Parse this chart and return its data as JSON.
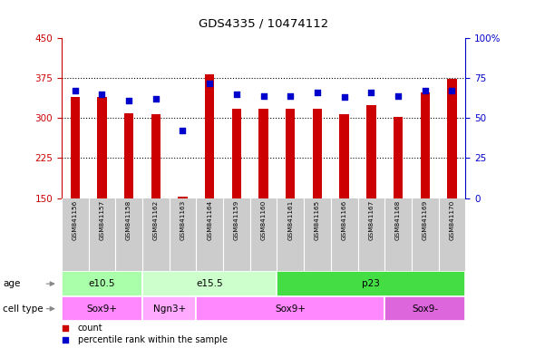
{
  "title": "GDS4335 / 10474112",
  "samples": [
    "GSM841156",
    "GSM841157",
    "GSM841158",
    "GSM841162",
    "GSM841163",
    "GSM841164",
    "GSM841159",
    "GSM841160",
    "GSM841161",
    "GSM841165",
    "GSM841166",
    "GSM841167",
    "GSM841168",
    "GSM841169",
    "GSM841170"
  ],
  "counts": [
    340,
    340,
    310,
    308,
    153,
    382,
    318,
    318,
    318,
    318,
    308,
    325,
    303,
    348,
    373
  ],
  "percentile_ranks": [
    67,
    65,
    61,
    62,
    42,
    72,
    65,
    64,
    64,
    66,
    63,
    66,
    64,
    67,
    67
  ],
  "age_groups": [
    {
      "label": "e10.5",
      "start": 0,
      "end": 3
    },
    {
      "label": "e15.5",
      "start": 3,
      "end": 8
    },
    {
      "label": "p23",
      "start": 8,
      "end": 15
    }
  ],
  "age_colors": {
    "e10.5": "#aaffaa",
    "e15.5": "#ccffcc",
    "p23": "#44dd44"
  },
  "cell_type_groups": [
    {
      "label": "Sox9+",
      "start": 0,
      "end": 3
    },
    {
      "label": "Ngn3+",
      "start": 3,
      "end": 5
    },
    {
      "label": "Sox9+",
      "start": 5,
      "end": 12
    },
    {
      "label": "Sox9-",
      "start": 12,
      "end": 15
    }
  ],
  "cell_colors": {
    "Sox9+": "#ff88ff",
    "Ngn3+": "#ffaaff",
    "Sox9-": "#dd66dd"
  },
  "ylim_left": [
    150,
    450
  ],
  "ylim_right": [
    0,
    100
  ],
  "yticks_left": [
    150,
    225,
    300,
    375,
    450
  ],
  "yticks_right": [
    0,
    25,
    50,
    75,
    100
  ],
  "bar_color": "#cc0000",
  "dot_color": "#0000cc",
  "samp_bg": "#cccccc",
  "age_label": "age",
  "cell_type_label": "cell type",
  "legend_count": "count",
  "legend_percentile": "percentile rank within the sample",
  "left_axis_color": "#cc0000",
  "right_axis_color": "#0000cc"
}
